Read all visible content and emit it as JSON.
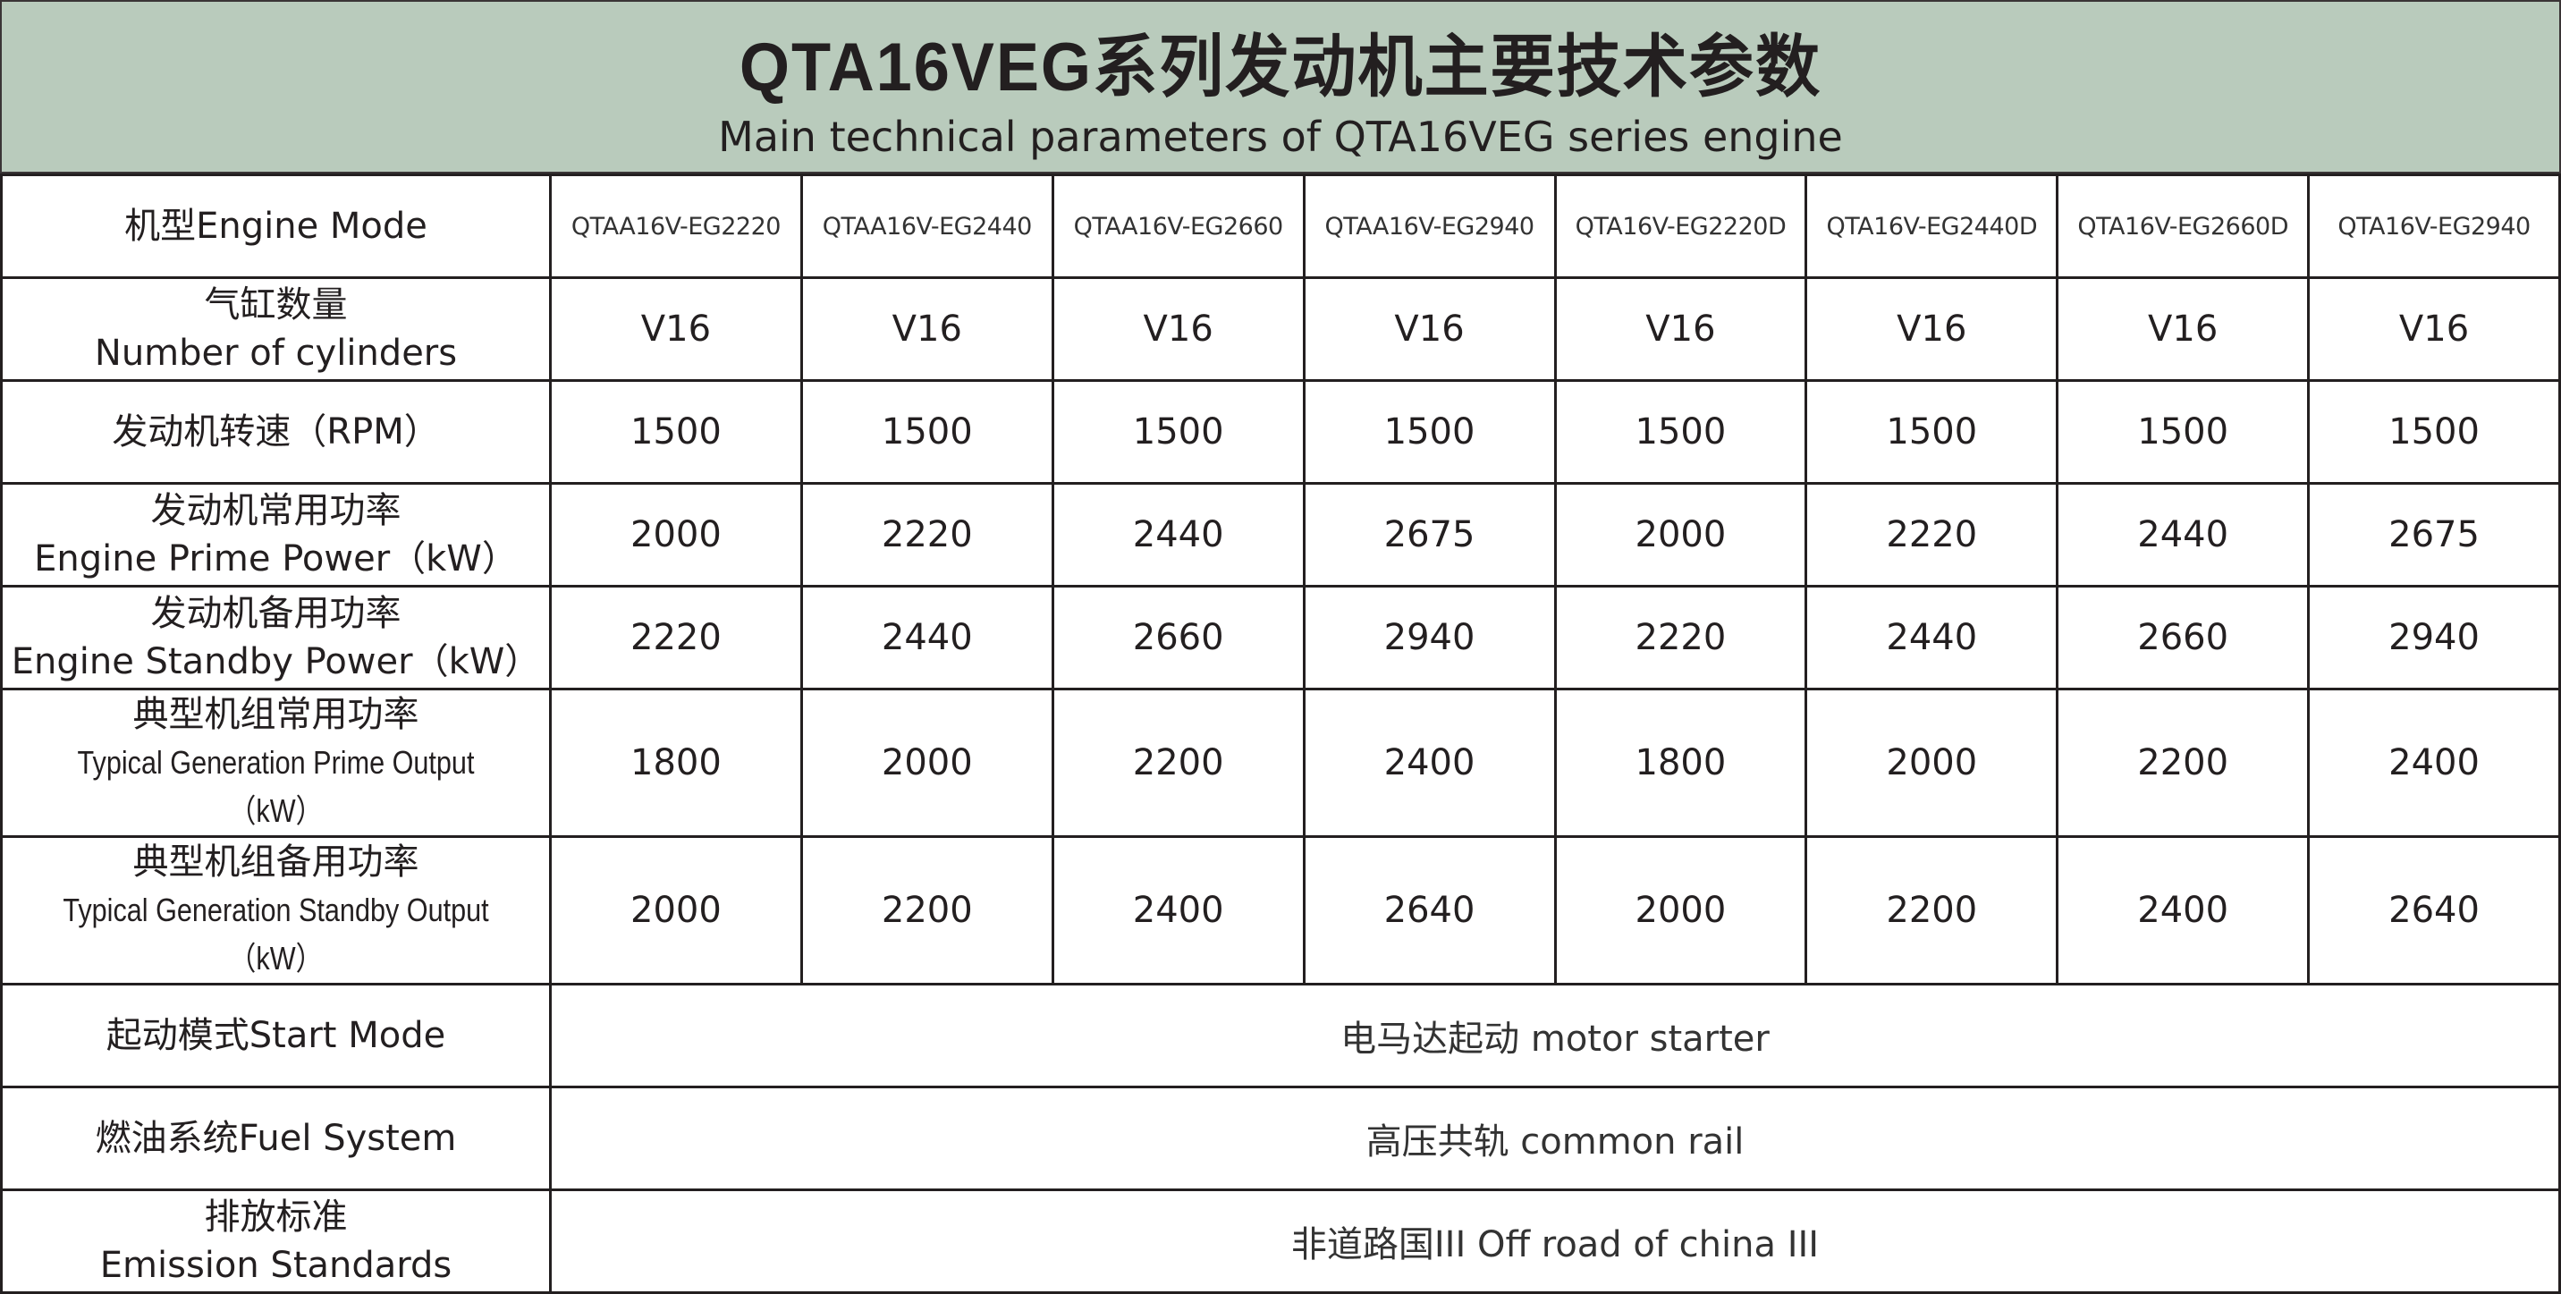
{
  "header": {
    "title": "QTA16VEG系列发动机主要技术参数",
    "subtitle": "Main technical parameters of QTA16VEG series engine",
    "background_color": "#b9cbbc"
  },
  "table": {
    "model_row": {
      "label": "机型Engine Mode",
      "models": [
        "QTAA16V-EG2220",
        "QTAA16V-EG2440",
        "QTAA16V-EG2660",
        "QTAA16V-EG2940",
        "QTA16V-EG2220D",
        "QTA16V-EG2440D",
        "QTA16V-EG2660D",
        "QTA16V-EG2940"
      ]
    },
    "rows": [
      {
        "label_cn": "气缸数量",
        "label_en": "Number of cylinders",
        "values": [
          "V16",
          "V16",
          "V16",
          "V16",
          "V16",
          "V16",
          "V16",
          "V16"
        ]
      },
      {
        "label_cn": "发动机转速（RPM）",
        "label_en": "",
        "values": [
          "1500",
          "1500",
          "1500",
          "1500",
          "1500",
          "1500",
          "1500",
          "1500"
        ]
      },
      {
        "label_cn": "发动机常用功率",
        "label_en": "Engine Prime  Power（kW）",
        "values": [
          "2000",
          "2220",
          "2440",
          "2675",
          "2000",
          "2220",
          "2440",
          "2675"
        ]
      },
      {
        "label_cn": "发动机备用功率",
        "label_en": "Engine Standby Power（kW）",
        "values": [
          "2220",
          "2440",
          "2660",
          "2940",
          "2220",
          "2440",
          "2660",
          "2940"
        ]
      },
      {
        "label_cn": "典型机组常用功率",
        "label_en": "Typical Generation Prime Output（kW）",
        "values": [
          "1800",
          "2000",
          "2200",
          "2400",
          "1800",
          "2000",
          "2200",
          "2400"
        ]
      },
      {
        "label_cn": "典型机组备用功率",
        "label_en": "Typical Generation Standby Output（kW）",
        "values": [
          "2000",
          "2200",
          "2400",
          "2640",
          "2000",
          "2200",
          "2400",
          "2640"
        ]
      }
    ],
    "span_rows": [
      {
        "label_cn": "起动模式Start Mode",
        "label_en": "",
        "value": "电马达起动 motor starter"
      },
      {
        "label_cn": "燃油系统Fuel System",
        "label_en": "",
        "value": "高压共轨 common rail"
      },
      {
        "label_cn": "排放标准",
        "label_en": "Emission Standards",
        "value": "非道路国III Off road of china III"
      }
    ]
  }
}
